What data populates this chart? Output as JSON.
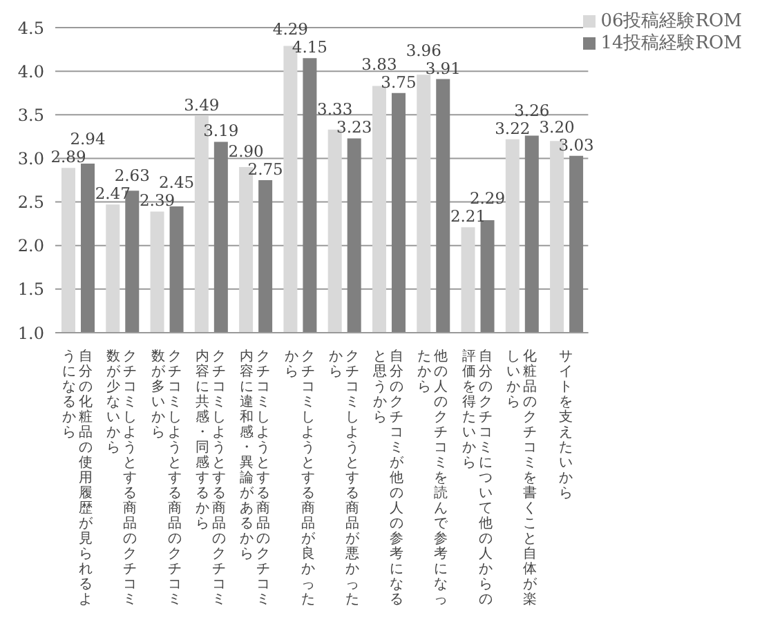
{
  "chart_data": {
    "type": "bar",
    "categories": [
      "自分の化粧品の使用履歴が見られるようになるから",
      "クチコミしようとする商品のクチコミ数が少ないから",
      "クチコミしようとする商品のクチコミ数が多いから",
      "クチコミしようとする商品のクチコミ内容に共感・同感するから",
      "クチコミしようとする商品のクチコミ内容に違和感・異論があるから",
      "クチコミしようとする商品が良かったから",
      "クチコミしようとする商品が悪かったから",
      "自分のクチコミが他の人の参考になると思うから",
      "他の人のクチコミを読んで参考になったから",
      "自分のクチコミについて他の人からの評価を得たいから",
      "化粧品のクチコミを書くこと自体が楽しいから",
      "サイトを支えたいから"
    ],
    "series": [
      {
        "name": "06投稿経験ROM",
        "color": "#d9d9d9",
        "values": [
          2.89,
          2.47,
          2.39,
          3.49,
          2.9,
          4.29,
          3.33,
          3.83,
          3.96,
          2.21,
          3.22,
          3.2
        ],
        "value_labels": [
          "2.89",
          "2.47",
          "2.39",
          "3.49",
          "2.90",
          "4.29",
          "3.33",
          "3.83",
          "3.96",
          "2.21",
          "3.22",
          "3.20"
        ]
      },
      {
        "name": "14投稿経験ROM",
        "color": "#808080",
        "values": [
          2.94,
          2.63,
          2.45,
          3.19,
          2.75,
          4.15,
          3.23,
          3.75,
          3.91,
          2.29,
          3.26,
          3.03
        ],
        "value_labels": [
          "2.94",
          "2.63",
          "2.45",
          "3.19",
          "2.75",
          "4.15",
          "3.23",
          "3.75",
          "3.91",
          "2.29",
          "3.26",
          "3.03"
        ]
      }
    ],
    "ylim": [
      1,
      4.5
    ],
    "yticks": [
      {
        "value": 1,
        "label": "1.0"
      },
      {
        "value": 1.5,
        "label": "1.5"
      },
      {
        "value": 2,
        "label": "2.0"
      },
      {
        "value": 2.5,
        "label": "2.5"
      },
      {
        "value": 3,
        "label": "3.0"
      },
      {
        "value": 3.5,
        "label": "3.5"
      },
      {
        "value": 4,
        "label": "4.0"
      },
      {
        "value": 4.5,
        "label": "4.5"
      }
    ],
    "grid": "y",
    "legend": "top right"
  }
}
